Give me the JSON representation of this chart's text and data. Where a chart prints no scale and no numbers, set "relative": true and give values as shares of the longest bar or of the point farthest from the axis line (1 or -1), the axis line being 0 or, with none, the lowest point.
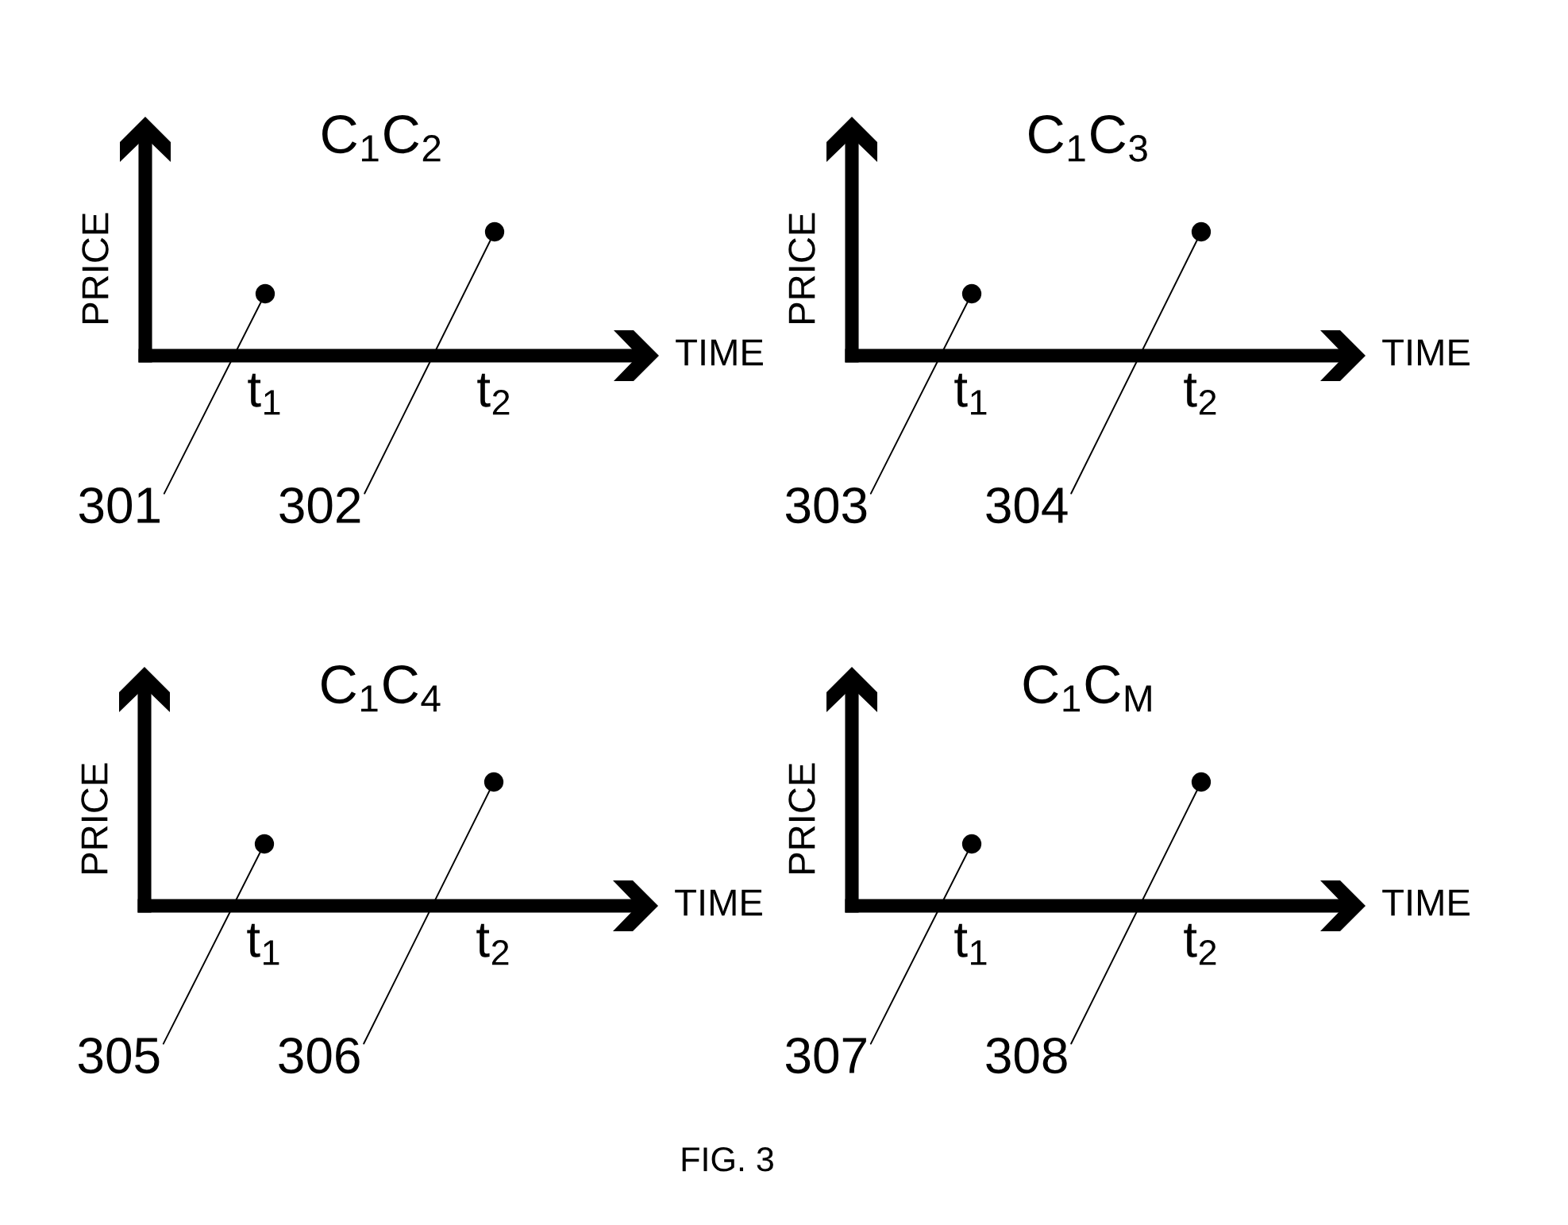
{
  "chart_data": [
    {
      "type": "scatter",
      "title": "C$_{1}$C$_{2}$",
      "xlabel": "TIME",
      "ylabel": "PRICE",
      "categories": [
        "t$_{1}$",
        "t$_{2}$"
      ],
      "relative": true,
      "tick_labels": "x",
      "marker": "circle",
      "series": [
        {
          "color": "#000000",
          "values": [
            0.5,
            1
          ]
        }
      ],
      "annotations": [
        {
          "text": "301",
          "x": "t$_{1}$",
          "y": 0.5
        },
        {
          "text": "302",
          "x": "t$_{2}$",
          "y": 1
        }
      ]
    },
    {
      "type": "scatter",
      "title": "C$_{1}$C$_{3}$",
      "xlabel": "TIME",
      "ylabel": "PRICE",
      "categories": [
        "t$_{1}$",
        "t$_{2}$"
      ],
      "relative": true,
      "tick_labels": "x",
      "marker": "circle",
      "series": [
        {
          "color": "#000000",
          "values": [
            0.5,
            1
          ]
        }
      ],
      "annotations": [
        {
          "text": "303",
          "x": "t$_{1}$",
          "y": 0.5
        },
        {
          "text": "304",
          "x": "t$_{2}$",
          "y": 1
        }
      ]
    },
    {
      "type": "scatter",
      "title": "C$_{1}$C$_{4}$",
      "xlabel": "TIME",
      "ylabel": "PRICE",
      "categories": [
        "t$_{1}$",
        "t$_{2}$"
      ],
      "relative": true,
      "tick_labels": "x",
      "marker": "circle",
      "series": [
        {
          "color": "#000000",
          "values": [
            0.5,
            1
          ]
        }
      ],
      "annotations": [
        {
          "text": "305",
          "x": "t$_{1}$",
          "y": 0.5
        },
        {
          "text": "306",
          "x": "t$_{2}$",
          "y": 1
        }
      ]
    },
    {
      "type": "scatter",
      "title": "C$_{1}$C$_{M}$",
      "xlabel": "TIME",
      "ylabel": "PRICE",
      "categories": [
        "t$_{1}$",
        "t$_{2}$"
      ],
      "relative": true,
      "tick_labels": "x",
      "marker": "circle",
      "series": [
        {
          "color": "#000000",
          "values": [
            0.5,
            1
          ]
        }
      ],
      "annotations": [
        {
          "text": "307",
          "x": "t$_{1}$",
          "y": 0.5
        },
        {
          "text": "308",
          "x": "t$_{2}$",
          "y": 1
        },
        "FIG. 3"
      ]
    }
  ]
}
